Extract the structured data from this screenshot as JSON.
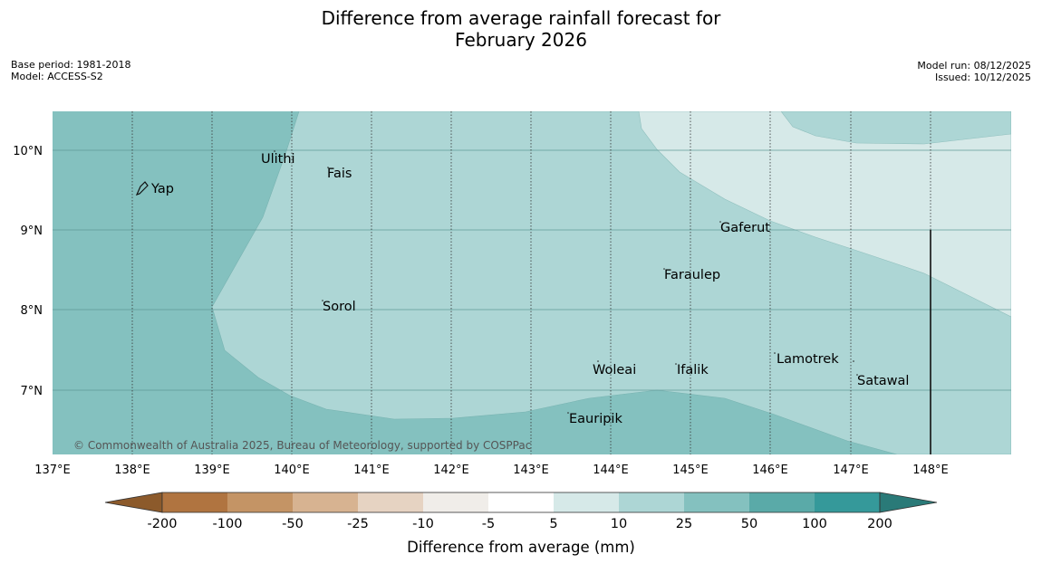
{
  "title": {
    "line1": "Difference from average rainfall forecast for",
    "line2": "February 2026"
  },
  "meta_left": {
    "base_period": "Base period: 1981-2018",
    "model": "Model: ACCESS-S2"
  },
  "meta_right": {
    "model_run": "Model run: 08/12/2025",
    "issued": "Issued: 10/12/2025"
  },
  "map": {
    "lat_ticks": [
      "10°N",
      "9°N",
      "8°N",
      "7°N"
    ],
    "lon_ticks": [
      "137°E",
      "138°E",
      "139°E",
      "140°E",
      "141°E",
      "142°E",
      "143°E",
      "144°E",
      "145°E",
      "146°E",
      "147°E",
      "148°E"
    ],
    "places": [
      "Yap",
      "Ulithi",
      "Fais",
      "Gaferut",
      "Faraulep",
      "Sorol",
      "Woleai",
      "Ifalik",
      "Lamotrek",
      "Satawal",
      "Eauripik"
    ],
    "copyright": "© Commonwealth of Australia 2025, Bureau of Meteorology, supported by COSPPac",
    "region_colors": {
      "band_25_50": "#84c1bf",
      "band_10_25": "#add6d5",
      "band_5_10": "#d6e9e8"
    }
  },
  "colorbar": {
    "label": "Difference from average (mm)",
    "ticks": [
      "-200",
      "-100",
      "-50",
      "-25",
      "-10",
      "-5",
      "5",
      "10",
      "25",
      "50",
      "100",
      "200"
    ],
    "colors": [
      "#8c5a2b",
      "#b07440",
      "#c49465",
      "#d7b391",
      "#e6d3c2",
      "#f0ede9",
      "#ffffff",
      "#d6e9e8",
      "#add6d5",
      "#84c1bf",
      "#5aaaa8",
      "#35999a",
      "#2a7a78"
    ]
  }
}
